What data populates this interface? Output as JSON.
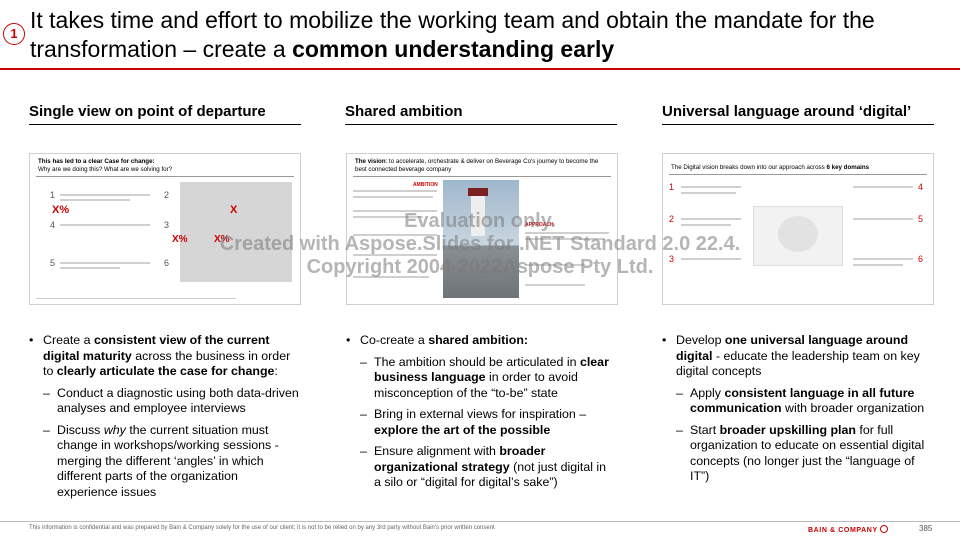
{
  "header": {
    "step_number": "1",
    "title_part1": "It takes time and effort to mobilize the working team and obtain the mandate for the transformation – create a ",
    "title_bold": "common understanding early"
  },
  "columns": [
    {
      "heading": "Single view on point of departure",
      "thumbnail": {
        "title_bold": "This has led to a clear Case for change:",
        "title_rest": "Why are we doing this? What are we solving for?"
      },
      "bullets": [
        {
          "segments": [
            {
              "t": "Create a ",
              "b": false
            },
            {
              "t": "consistent view of the current digital maturity",
              "b": true
            },
            {
              "t": " across the business in order to ",
              "b": false
            },
            {
              "t": "clearly articulate the case for change",
              "b": true
            },
            {
              "t": ":",
              "b": false
            }
          ],
          "sub": [
            "Conduct a diagnostic using both data-driven analyses and employee interviews",
            "Discuss why the current situation must change in workshops/working sessions - merging the different ‘angles’ in which different parts of the organization experience issues"
          ]
        }
      ]
    },
    {
      "heading": "Shared ambition",
      "thumbnail": {
        "title_bold": "The vision",
        "title_rest": ": to accelerate, orchestrate & deliver on Beverage Co's journey to become the best connected beverage company",
        "label_ambition": "AMBITION",
        "label_approach": "APPROACH"
      },
      "bullets": [
        {
          "lead": "Co-create a ",
          "lead_bold": "shared ambition:",
          "sub": [
            {
              "a": "The ambition should be articulated in ",
              "ab": "clear business language",
              "c": " in order to avoid misconception of the “to-be” state"
            },
            {
              "a": "Bring in external views for inspiration – ",
              "ab": "explore the art of the possible",
              "c": ""
            },
            {
              "a": "Ensure alignment with ",
              "ab": "broader organizational strategy",
              "c": " (not just digital in a silo or “digital for digital’s sake”)"
            }
          ]
        }
      ]
    },
    {
      "heading": "Universal language around ‘digital’",
      "thumbnail": {
        "title_rest": "The Digital vision breaks down into our approach across ",
        "title_bold": "6 key domains"
      },
      "bullets": [
        {
          "lead": "Develop ",
          "lead_bold": "one universal language around digital",
          "lead_rest": " - educate the leadership team on key digital concepts",
          "sub": [
            {
              "a": "Apply ",
              "ab": "consistent language in all future communication",
              "c": " with broader organization"
            },
            {
              "a": "Start ",
              "ab": "broader upskilling plan",
              "c": " for full organization to educate on essential digital concepts (no longer just the “language of IT”)"
            }
          ]
        }
      ]
    }
  ],
  "watermark": {
    "line1": "Evaluation only.",
    "line2": "Created with Aspose.Slides for .NET Standard 2.0 22.4.",
    "line3": "Copyright 2004-2022Aspose Pty Ltd."
  },
  "footer": {
    "note": "This information is confidential and was prepared by Bain & Company solely for the use of our client; it is not to be relied on by any 3rd party without Bain's prior written consent",
    "brand": "BAIN & COMPANY",
    "page": "385"
  },
  "colors": {
    "accent": "#cc0000"
  }
}
